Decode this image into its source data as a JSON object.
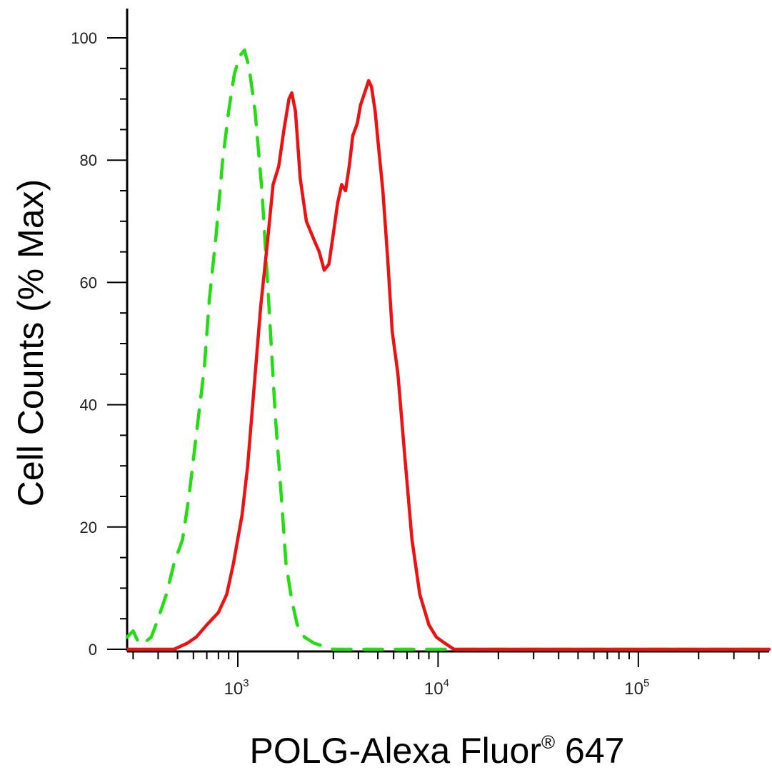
{
  "chart_data": {
    "type": "area",
    "title": "",
    "xlabel": "POLG-Alexa Fluor",
    "xlabel_mark": "®",
    "xlabel_suffix": " 647",
    "ylabel": "Cell Counts (% Max)",
    "x_scale": "log",
    "xlim": [
      280,
      450000
    ],
    "ylim": [
      0,
      105
    ],
    "grid": false,
    "y_ticks": [
      0,
      20,
      40,
      60,
      80,
      100
    ],
    "x_ticks": [
      {
        "value": 1000,
        "base": "10",
        "exp": "3"
      },
      {
        "value": 10000,
        "base": "10",
        "exp": "4"
      },
      {
        "value": 100000,
        "base": "10",
        "exp": "5"
      }
    ],
    "series": [
      {
        "color": "#22dd11",
        "line_style": "dashed",
        "points": [
          [
            280,
            2
          ],
          [
            300,
            3
          ],
          [
            320,
            1
          ],
          [
            340,
            1
          ],
          [
            370,
            2
          ],
          [
            400,
            5
          ],
          [
            440,
            9
          ],
          [
            480,
            14
          ],
          [
            530,
            18
          ],
          [
            570,
            25
          ],
          [
            620,
            35
          ],
          [
            680,
            46
          ],
          [
            720,
            57
          ],
          [
            780,
            68
          ],
          [
            840,
            80
          ],
          [
            900,
            88
          ],
          [
            960,
            94
          ],
          [
            1020,
            97
          ],
          [
            1080,
            98
          ],
          [
            1140,
            95
          ],
          [
            1220,
            88
          ],
          [
            1320,
            75
          ],
          [
            1420,
            58
          ],
          [
            1540,
            38
          ],
          [
            1640,
            26
          ],
          [
            1740,
            14
          ],
          [
            1860,
            8
          ],
          [
            1980,
            4
          ],
          [
            2150,
            2
          ],
          [
            2400,
            1
          ],
          [
            3000,
            0
          ],
          [
            5000,
            0
          ],
          [
            20000,
            0
          ],
          [
            100000,
            0
          ],
          [
            450000,
            0
          ]
        ]
      },
      {
        "color": "#ee1111",
        "line_style": "solid",
        "points": [
          [
            280,
            0
          ],
          [
            400,
            0
          ],
          [
            480,
            0
          ],
          [
            560,
            1
          ],
          [
            620,
            2
          ],
          [
            700,
            4
          ],
          [
            800,
            6
          ],
          [
            880,
            9
          ],
          [
            950,
            14
          ],
          [
            1050,
            22
          ],
          [
            1120,
            30
          ],
          [
            1200,
            42
          ],
          [
            1300,
            56
          ],
          [
            1400,
            66
          ],
          [
            1500,
            76
          ],
          [
            1600,
            79
          ],
          [
            1700,
            85
          ],
          [
            1800,
            90
          ],
          [
            1860,
            91
          ],
          [
            1940,
            88
          ],
          [
            2050,
            77
          ],
          [
            2200,
            70
          ],
          [
            2400,
            67
          ],
          [
            2550,
            65
          ],
          [
            2700,
            62
          ],
          [
            2850,
            63
          ],
          [
            3000,
            68
          ],
          [
            3150,
            73
          ],
          [
            3300,
            76
          ],
          [
            3450,
            75
          ],
          [
            3600,
            79
          ],
          [
            3750,
            84
          ],
          [
            3950,
            86
          ],
          [
            4100,
            89
          ],
          [
            4300,
            91
          ],
          [
            4500,
            93
          ],
          [
            4650,
            92
          ],
          [
            4850,
            88
          ],
          [
            5050,
            82
          ],
          [
            5300,
            75
          ],
          [
            5600,
            64
          ],
          [
            5900,
            52
          ],
          [
            6300,
            45
          ],
          [
            6800,
            32
          ],
          [
            7400,
            18
          ],
          [
            8100,
            9
          ],
          [
            9000,
            4
          ],
          [
            9800,
            2
          ],
          [
            10800,
            1
          ],
          [
            12000,
            0
          ],
          [
            20000,
            0
          ],
          [
            100000,
            0
          ],
          [
            450000,
            0
          ]
        ]
      }
    ]
  }
}
